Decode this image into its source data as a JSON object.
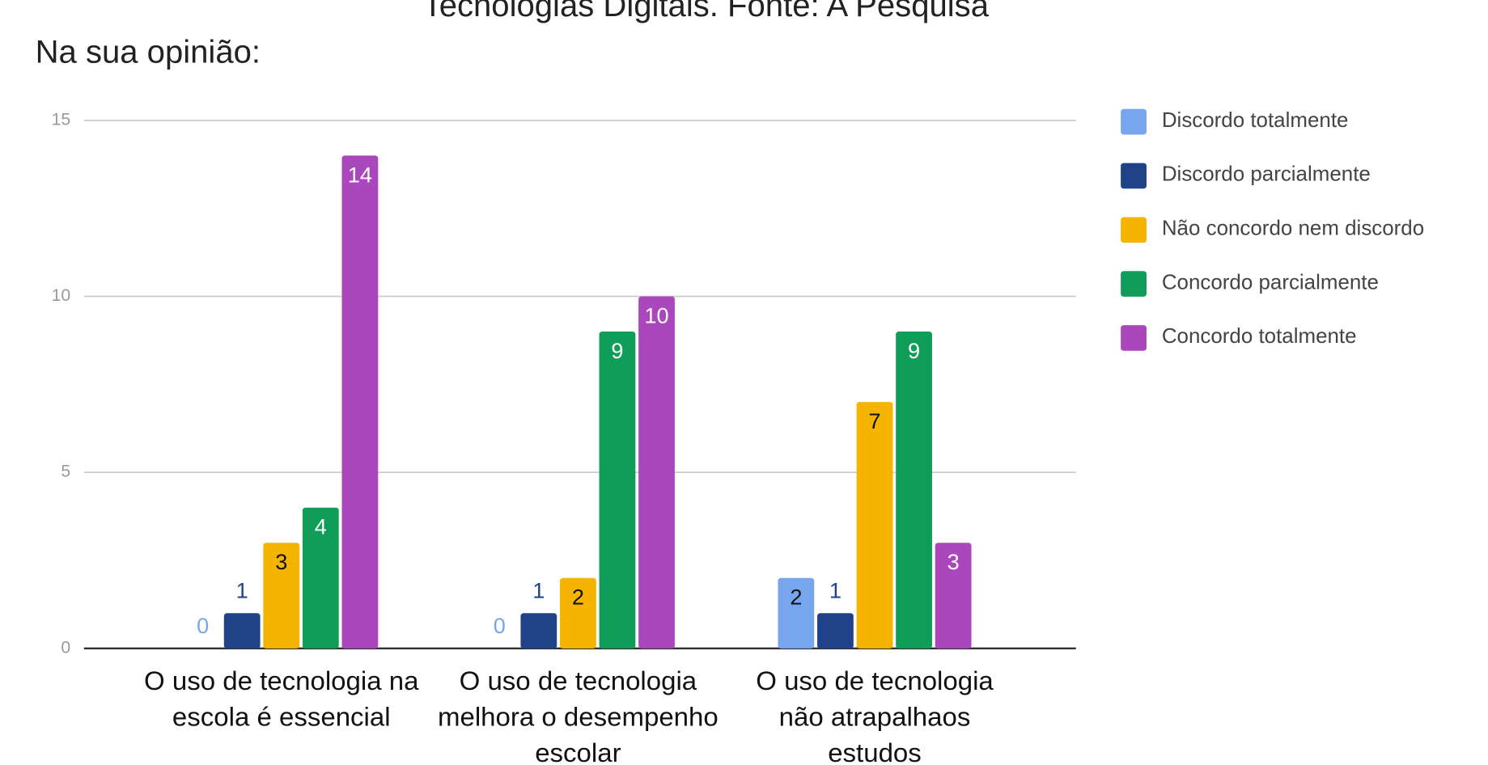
{
  "chart_data": {
    "type": "bar",
    "caption": "Tecnologias Digitais. Fonte: A Pesquisa",
    "title": "Na sua opinião:",
    "categories": [
      "O uso de tecnologia na escola é essencial",
      "O uso de tecnologia melhora o desempenho escolar",
      "O uso de tecnologia não atrapalhaos estudos"
    ],
    "series": [
      {
        "name": "Discordo totalmente",
        "color": "#77a6ee",
        "values": [
          0,
          0,
          2
        ]
      },
      {
        "name": "Discordo parcialmente",
        "color": "#1f4289",
        "values": [
          1,
          1,
          1
        ]
      },
      {
        "name": "Não concordo nem discordo",
        "color": "#f4b400",
        "values": [
          3,
          2,
          7
        ]
      },
      {
        "name": "Concordo parcialmente",
        "color": "#109d59",
        "values": [
          4,
          9,
          9
        ]
      },
      {
        "name": "Concordo totalmente",
        "color": "#ab47bc",
        "values": [
          14,
          10,
          3
        ]
      }
    ],
    "ylim": [
      0,
      15
    ],
    "yticks": [
      0,
      5,
      10,
      15
    ],
    "grid": true,
    "legend": "right"
  }
}
